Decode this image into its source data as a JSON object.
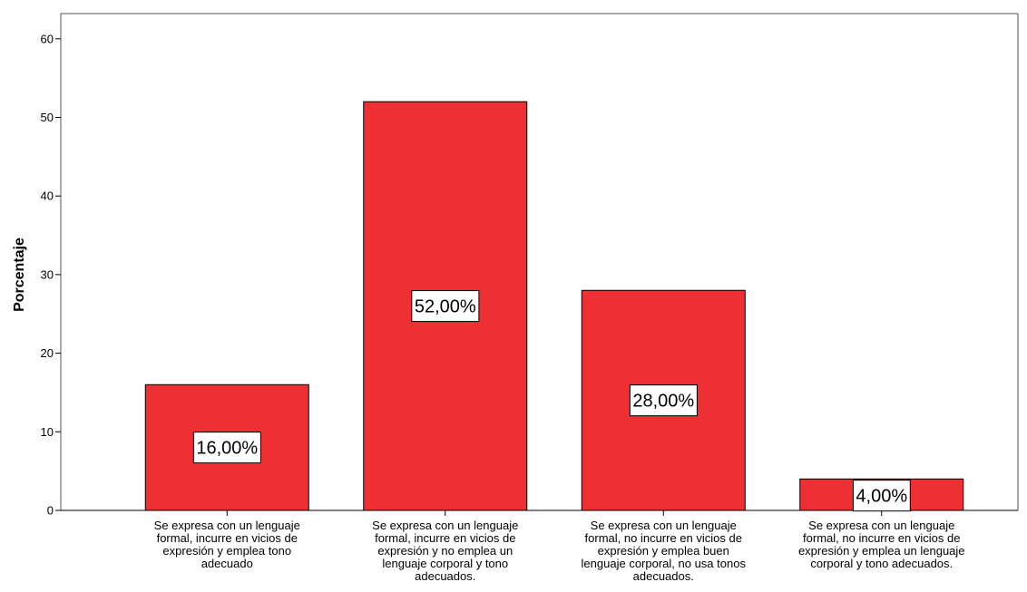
{
  "chart_data": {
    "type": "bar",
    "categories": [
      [
        "Se expresa con un lenguaje",
        "formal, incurre en vicios de",
        "expresión y emplea tono",
        "adecuado"
      ],
      [
        "Se expresa con un lenguaje",
        "formal, incurre en vicios de",
        "expresión y no emplea un",
        "lenguaje corporal y tono",
        "adecuados."
      ],
      [
        "Se expresa con un lenguaje",
        "formal, no incurre en vicios de",
        "expresión y emplea buen",
        "lenguaje corporal, no usa tonos",
        "adecuados."
      ],
      [
        "Se expresa con un lenguaje",
        "formal, no incurre en vicios de",
        "expresión y emplea un lenguaje",
        "corporal y tono adecuados."
      ]
    ],
    "values": [
      16,
      52,
      28,
      4
    ],
    "data_labels": [
      "16,00%",
      "52,00%",
      "28,00%",
      "4,00%"
    ],
    "xlabel": "",
    "ylabel": "Porcentaje",
    "ylim": [
      0,
      60
    ],
    "yticks": [
      0,
      10,
      20,
      30,
      40,
      50,
      60
    ],
    "grid": false,
    "bar_color": "#EE3035",
    "bar_edge_color": "#000000"
  }
}
